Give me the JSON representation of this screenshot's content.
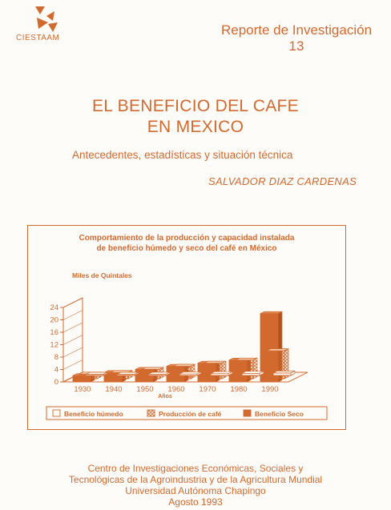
{
  "header": {
    "logo_text": "CIESTAAM",
    "series_label": "Reporte de Investigación",
    "series_number": "13"
  },
  "title": {
    "line1": "EL BENEFICIO DEL CAFE",
    "line2": "EN MEXICO"
  },
  "subtitle": "Antecedentes, estadísticas y situación técnica",
  "author": "SALVADOR DIAZ CARDENAS",
  "colors": {
    "accent": "#d2692e",
    "paper": "#fdfcf8"
  },
  "chart_data": {
    "type": "bar",
    "title_line1": "Comportamiento de la producción y capacidad instalada",
    "title_line2": "de beneficio húmedo y seco del café en México",
    "ylabel": "Miles de Quintales",
    "xlabel": "Años",
    "ylim": [
      0,
      24
    ],
    "yticks": [
      "0",
      "4",
      "8",
      "12",
      "16",
      "20",
      "24"
    ],
    "categories": [
      "1930",
      "1940",
      "1950",
      "1960",
      "1970",
      "1980",
      "1990"
    ],
    "series": [
      {
        "name": "Beneficio húmedo",
        "values": [
          0.3,
          0.3,
          0.4,
          0.5,
          0.6,
          0.7,
          0.8
        ]
      },
      {
        "name": "Producción de café",
        "values": [
          1.5,
          2,
          3,
          4,
          5,
          6,
          9
        ]
      },
      {
        "name": "Beneficio Seco",
        "values": [
          2,
          3,
          4,
          5,
          6,
          7,
          22
        ]
      }
    ],
    "legend_position": "bottom"
  },
  "footer": {
    "line1": "Centro de Investigaciones Económicas, Sociales y",
    "line2": "Tecnológicas de la Agroindustria y de la Agricultura Mundial",
    "line3": "Universidad Autónoma Chapingo",
    "line4": "Agosto 1993"
  }
}
